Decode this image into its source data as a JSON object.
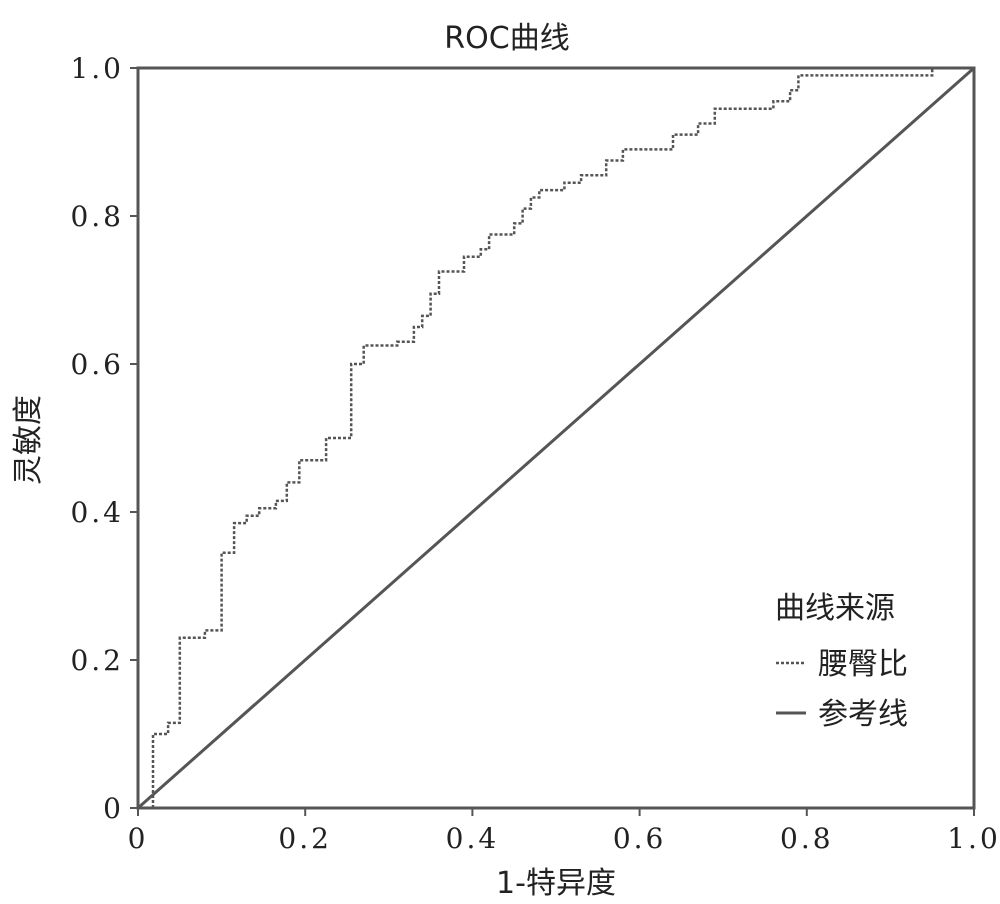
{
  "chart_data": {
    "type": "line",
    "title": "ROC曲线",
    "xlabel": "1-特异度",
    "ylabel": "灵敏度",
    "xlim": [
      0,
      1
    ],
    "ylim": [
      0,
      1
    ],
    "x_ticks": [
      0,
      0.2,
      0.4,
      0.6,
      0.8,
      1.0
    ],
    "x_tick_labels": [
      "0",
      "0.2",
      "0.4",
      "0.6",
      "0.8",
      "1.0"
    ],
    "y_ticks": [
      0,
      0.2,
      0.4,
      0.6,
      0.8,
      1.0
    ],
    "y_tick_labels": [
      "0",
      "0.2",
      "0.4",
      "0.6",
      "0.8",
      "1.0"
    ],
    "grid": false,
    "legend": {
      "title": "曲线来源",
      "position": "bottom-right"
    },
    "series": [
      {
        "name": "腰臀比",
        "style": "dashed",
        "color": "#555555",
        "points": [
          [
            0,
            0
          ],
          [
            0.018,
            0
          ],
          [
            0.018,
            0.1
          ],
          [
            0.036,
            0.1
          ],
          [
            0.036,
            0.115
          ],
          [
            0.05,
            0.115
          ],
          [
            0.05,
            0.23
          ],
          [
            0.08,
            0.23
          ],
          [
            0.08,
            0.24
          ],
          [
            0.1,
            0.24
          ],
          [
            0.1,
            0.345
          ],
          [
            0.115,
            0.345
          ],
          [
            0.115,
            0.385
          ],
          [
            0.13,
            0.385
          ],
          [
            0.13,
            0.395
          ],
          [
            0.145,
            0.395
          ],
          [
            0.145,
            0.405
          ],
          [
            0.165,
            0.405
          ],
          [
            0.165,
            0.415
          ],
          [
            0.178,
            0.415
          ],
          [
            0.178,
            0.44
          ],
          [
            0.193,
            0.44
          ],
          [
            0.193,
            0.47
          ],
          [
            0.225,
            0.47
          ],
          [
            0.225,
            0.5
          ],
          [
            0.255,
            0.5
          ],
          [
            0.255,
            0.6
          ],
          [
            0.27,
            0.6
          ],
          [
            0.27,
            0.625
          ],
          [
            0.31,
            0.625
          ],
          [
            0.31,
            0.63
          ],
          [
            0.33,
            0.63
          ],
          [
            0.33,
            0.65
          ],
          [
            0.34,
            0.65
          ],
          [
            0.34,
            0.665
          ],
          [
            0.35,
            0.665
          ],
          [
            0.35,
            0.695
          ],
          [
            0.36,
            0.695
          ],
          [
            0.36,
            0.725
          ],
          [
            0.39,
            0.725
          ],
          [
            0.39,
            0.745
          ],
          [
            0.41,
            0.745
          ],
          [
            0.41,
            0.755
          ],
          [
            0.42,
            0.755
          ],
          [
            0.42,
            0.775
          ],
          [
            0.45,
            0.775
          ],
          [
            0.45,
            0.79
          ],
          [
            0.46,
            0.79
          ],
          [
            0.46,
            0.81
          ],
          [
            0.47,
            0.81
          ],
          [
            0.47,
            0.825
          ],
          [
            0.48,
            0.825
          ],
          [
            0.48,
            0.835
          ],
          [
            0.51,
            0.835
          ],
          [
            0.51,
            0.845
          ],
          [
            0.53,
            0.845
          ],
          [
            0.53,
            0.855
          ],
          [
            0.56,
            0.855
          ],
          [
            0.56,
            0.875
          ],
          [
            0.58,
            0.875
          ],
          [
            0.58,
            0.89
          ],
          [
            0.64,
            0.89
          ],
          [
            0.64,
            0.91
          ],
          [
            0.67,
            0.91
          ],
          [
            0.67,
            0.925
          ],
          [
            0.69,
            0.925
          ],
          [
            0.69,
            0.945
          ],
          [
            0.76,
            0.945
          ],
          [
            0.76,
            0.955
          ],
          [
            0.78,
            0.955
          ],
          [
            0.78,
            0.97
          ],
          [
            0.79,
            0.97
          ],
          [
            0.79,
            0.99
          ],
          [
            0.95,
            0.99
          ],
          [
            0.95,
            1.0
          ],
          [
            1.0,
            1.0
          ]
        ]
      },
      {
        "name": "参考线",
        "style": "solid",
        "color": "#555555",
        "points": [
          [
            0,
            0
          ],
          [
            1,
            1
          ]
        ]
      }
    ]
  }
}
